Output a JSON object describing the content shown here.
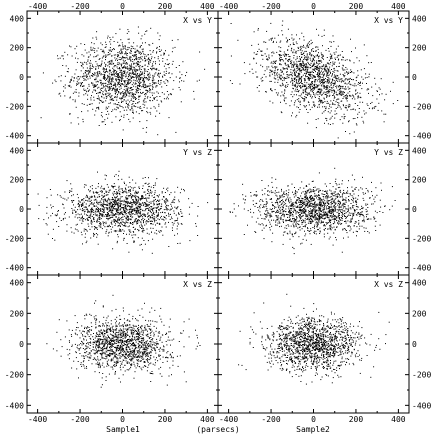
{
  "chart_data": {
    "type": "scatter",
    "axis_range": [
      -450,
      450
    ],
    "ticks": [
      -400,
      -200,
      0,
      200,
      400
    ],
    "grid": false,
    "point_color": "#000000",
    "column_labels": [
      "Sample1",
      "Sample2"
    ],
    "center_label": "(parsecs)",
    "panels": [
      {
        "title": "X vs Y",
        "row": 0,
        "col": 0,
        "n_points": 1500,
        "sigma_x": 120,
        "sigma_y": 130,
        "corr": 0.0
      },
      {
        "title": "X vs Y",
        "row": 0,
        "col": 1,
        "n_points": 1500,
        "sigma_x": 130,
        "sigma_y": 130,
        "corr": -0.45
      },
      {
        "title": "Y vs Z",
        "row": 1,
        "col": 0,
        "n_points": 1500,
        "sigma_x": 135,
        "sigma_y": 85,
        "corr": 0.0
      },
      {
        "title": "Y vs Z",
        "row": 1,
        "col": 1,
        "n_points": 1500,
        "sigma_x": 135,
        "sigma_y": 85,
        "corr": 0.0
      },
      {
        "title": "X vs Z",
        "row": 2,
        "col": 0,
        "n_points": 1400,
        "sigma_x": 110,
        "sigma_y": 85,
        "corr": 0.0
      },
      {
        "title": "X vs Z",
        "row": 2,
        "col": 1,
        "n_points": 1400,
        "sigma_x": 110,
        "sigma_y": 85,
        "corr": 0.0
      }
    ]
  }
}
